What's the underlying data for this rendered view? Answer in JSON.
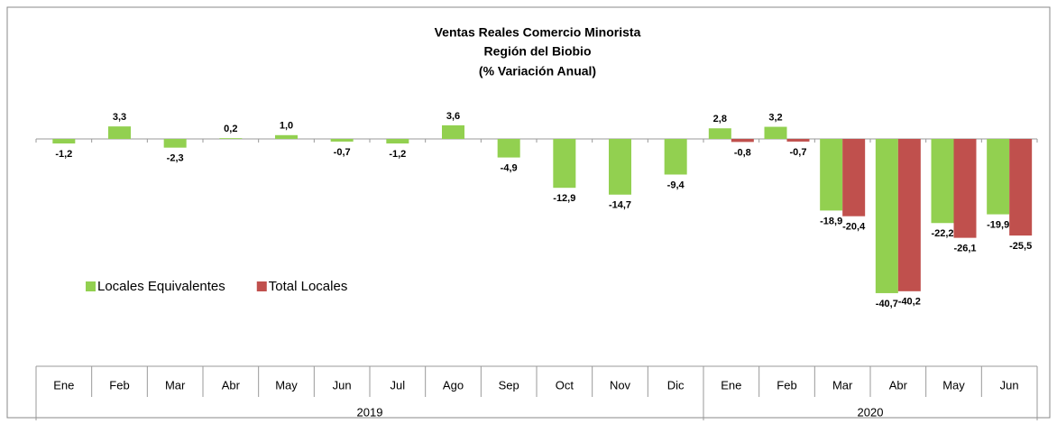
{
  "chart_data": {
    "type": "bar",
    "title": [
      "Ventas Reales Comercio Minorista",
      "Región del Biobio",
      "(% Variación Anual)"
    ],
    "categories": [
      "Ene",
      "Feb",
      "Mar",
      "Abr",
      "May",
      "Jun",
      "Jul",
      "Ago",
      "Sep",
      "Oct",
      "Nov",
      "Dic",
      "Ene",
      "Feb",
      "Mar",
      "Abr",
      "May",
      "Jun"
    ],
    "year_groups": [
      {
        "label": "2019",
        "count": 12
      },
      {
        "label": "2020",
        "count": 6
      }
    ],
    "series": [
      {
        "name": "Locales Equivalentes",
        "color": "#92d050",
        "values": [
          -1.2,
          3.3,
          -2.3,
          0.2,
          1.0,
          -0.7,
          -1.2,
          3.6,
          -4.9,
          -12.9,
          -14.7,
          -9.4,
          2.8,
          3.2,
          -18.9,
          -40.7,
          -22.2,
          -19.9
        ],
        "value_labels": [
          "-1,2",
          "3,3",
          "-2,3",
          "0,2",
          "1,0",
          "-0,7",
          "-1,2",
          "3,6",
          "-4,9",
          "-12,9",
          "-14,7",
          "-9,4",
          "2,8",
          "3,2",
          "-18,9",
          "-40,7",
          "-22,2",
          "-19,9"
        ]
      },
      {
        "name": "Total Locales",
        "color": "#c0504d",
        "values": [
          null,
          null,
          null,
          null,
          null,
          null,
          null,
          null,
          null,
          null,
          null,
          null,
          -0.8,
          -0.7,
          -20.4,
          -40.2,
          -26.1,
          -25.5
        ],
        "value_labels": [
          null,
          null,
          null,
          null,
          null,
          null,
          null,
          null,
          null,
          null,
          null,
          null,
          "-0,8",
          "-0,7",
          "-20,4",
          "-40,2",
          "-26,1",
          "-25,5"
        ]
      }
    ],
    "ylim": [
      -60,
      15
    ],
    "legend": "left"
  }
}
